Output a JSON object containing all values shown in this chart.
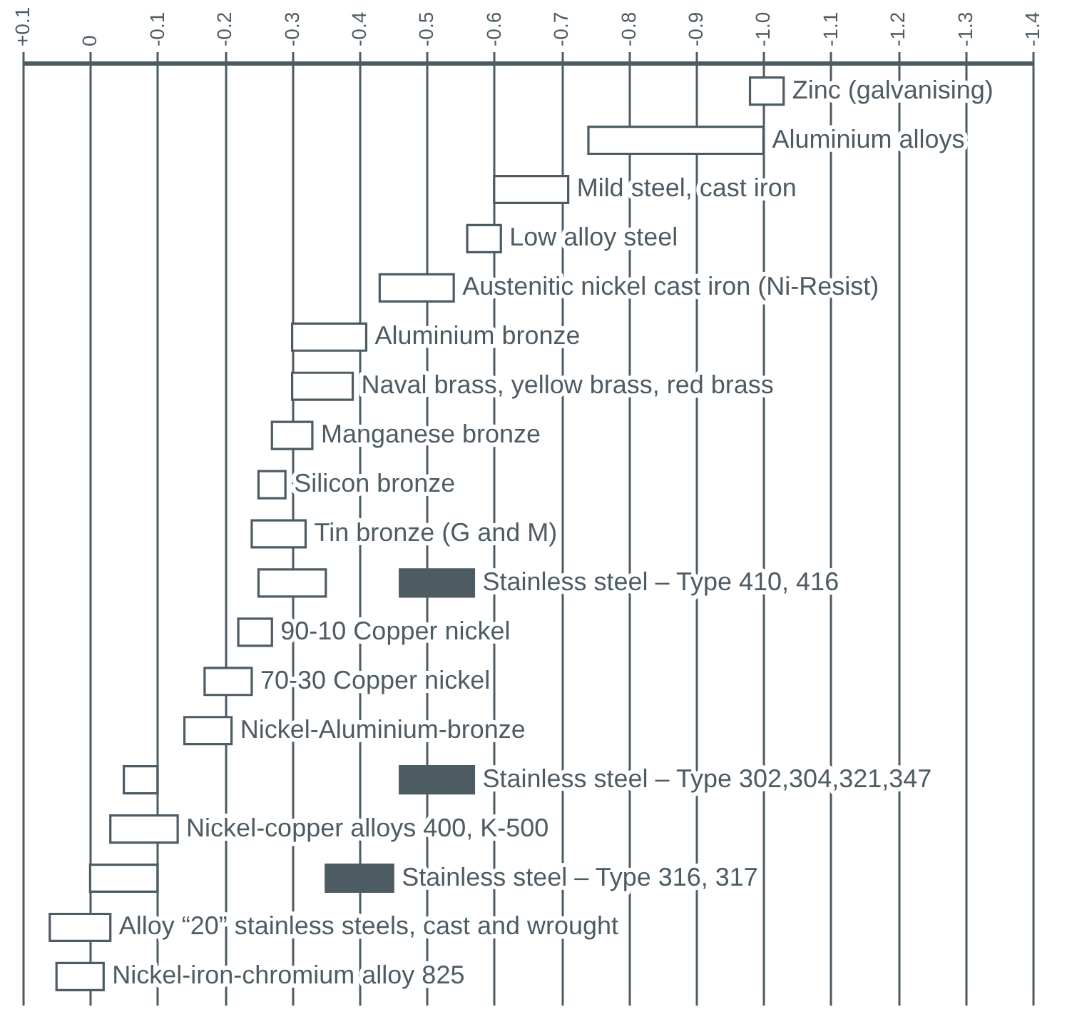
{
  "chart_data": {
    "type": "bar",
    "orientation": "horizontal",
    "categories": [
      "Zinc (galvanising)",
      "Aluminium alloys",
      "Mild steel, cast iron",
      "Low alloy steel",
      "Austenitic nickel cast iron (Ni-Resist)",
      "Aluminium bronze",
      "Naval brass, yellow brass, red brass",
      "Manganese bronze",
      "Silicon bronze",
      "Tin bronze (G and M)",
      "Stainless steel – Type 410, 416",
      "90-10 Copper nickel",
      "70-30 Copper nickel",
      "Nickel-Aluminium-bronze",
      "Stainless steel – Type 302,304,321,347",
      "Nickel-copper alloys 400, K-500",
      "Stainless steel – Type 316, 317",
      "Alloy “20” stainless steels, cast and wrought",
      "Nickel-iron-chromium alloy 825"
    ],
    "series": [
      {
        "color": "#ffffff",
        "base": [
          -0.98,
          -0.74,
          -0.6,
          -0.56,
          -0.43,
          -0.3,
          -0.3,
          -0.27,
          -0.25,
          -0.24,
          -0.25,
          -0.22,
          -0.17,
          -0.14,
          -0.05,
          -0.03,
          0,
          0.06,
          0.05
        ],
        "values": [
          -0.05,
          -0.26,
          -0.11,
          -0.05,
          -0.11,
          -0.11,
          -0.09,
          -0.06,
          -0.04,
          -0.08,
          -0.1,
          -0.05,
          -0.07,
          -0.07,
          -0.05,
          -0.1,
          -0.1,
          -0.09,
          -0.07
        ]
      },
      {
        "color": "#4d5b63",
        "base": [
          null,
          null,
          null,
          null,
          null,
          null,
          null,
          null,
          null,
          null,
          -0.46,
          null,
          null,
          null,
          -0.46,
          null,
          -0.35,
          null,
          null
        ],
        "values": [
          null,
          null,
          null,
          null,
          null,
          null,
          null,
          null,
          null,
          null,
          -0.11,
          null,
          null,
          null,
          -0.11,
          null,
          -0.1,
          null,
          null
        ]
      }
    ],
    "xlim": [
      0.1,
      -1.4
    ],
    "xticks": [
      {
        "value": 0.1,
        "label": "+0.1"
      },
      0,
      -0.1,
      -0.2,
      -0.3,
      -0.4,
      -0.5,
      -0.6,
      -0.7,
      -0.8,
      -0.9,
      {
        "value": -1,
        "label": "-1.0"
      },
      -1.1,
      -1.2,
      -1.3,
      -1.4
    ],
    "grid": true
  }
}
